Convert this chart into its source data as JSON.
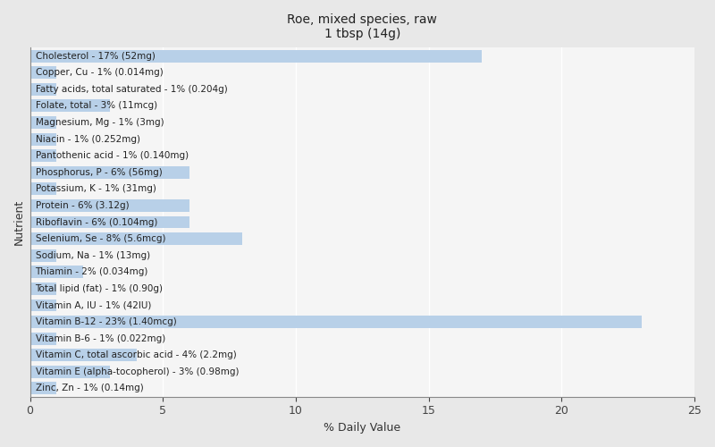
{
  "title_line1": "Roe, mixed species, raw",
  "title_line2": "1 tbsp (14g)",
  "xlabel": "% Daily Value",
  "ylabel": "Nutrient",
  "xlim": [
    0,
    25
  ],
  "background_color": "#e8e8e8",
  "plot_area_color": "#f5f5f5",
  "bar_color": "#b8d0e8",
  "bar_edge_color": "none",
  "nutrients": [
    {
      "label": "Zinc, Zn - 1% (0.14mg)",
      "value": 1
    },
    {
      "label": "Vitamin E (alpha-tocopherol) - 3% (0.98mg)",
      "value": 3
    },
    {
      "label": "Vitamin C, total ascorbic acid - 4% (2.2mg)",
      "value": 4
    },
    {
      "label": "Vitamin B-6 - 1% (0.022mg)",
      "value": 1
    },
    {
      "label": "Vitamin B-12 - 23% (1.40mcg)",
      "value": 23
    },
    {
      "label": "Vitamin A, IU - 1% (42IU)",
      "value": 1
    },
    {
      "label": "Total lipid (fat) - 1% (0.90g)",
      "value": 1
    },
    {
      "label": "Thiamin - 2% (0.034mg)",
      "value": 2
    },
    {
      "label": "Sodium, Na - 1% (13mg)",
      "value": 1
    },
    {
      "label": "Selenium, Se - 8% (5.6mcg)",
      "value": 8
    },
    {
      "label": "Riboflavin - 6% (0.104mg)",
      "value": 6
    },
    {
      "label": "Protein - 6% (3.12g)",
      "value": 6
    },
    {
      "label": "Potassium, K - 1% (31mg)",
      "value": 1
    },
    {
      "label": "Phosphorus, P - 6% (56mg)",
      "value": 6
    },
    {
      "label": "Pantothenic acid - 1% (0.140mg)",
      "value": 1
    },
    {
      "label": "Niacin - 1% (0.252mg)",
      "value": 1
    },
    {
      "label": "Magnesium, Mg - 1% (3mg)",
      "value": 1
    },
    {
      "label": "Folate, total - 3% (11mcg)",
      "value": 3
    },
    {
      "label": "Fatty acids, total saturated - 1% (0.204g)",
      "value": 1
    },
    {
      "label": "Copper, Cu - 1% (0.014mg)",
      "value": 1
    },
    {
      "label": "Cholesterol - 17% (52mg)",
      "value": 17
    }
  ],
  "gridline_color": "#ffffff",
  "tick_color": "#444444",
  "title_fontsize": 10,
  "label_fontsize": 7.5,
  "axis_label_fontsize": 9,
  "bar_height": 0.75
}
